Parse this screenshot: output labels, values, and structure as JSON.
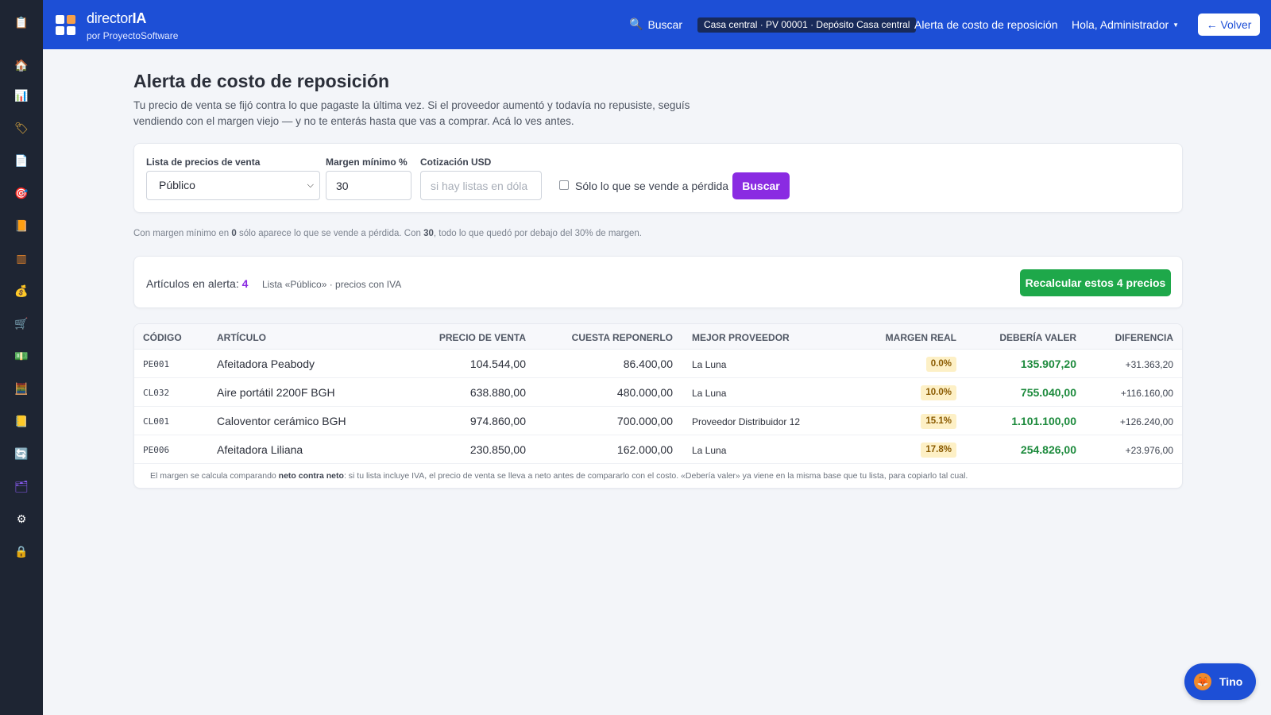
{
  "sidebar": {
    "items": [
      {
        "icon": "clipboard-icon",
        "glyph": "📋",
        "color": "#ffffff"
      },
      {
        "icon": "home-icon",
        "glyph": "🏠",
        "color": "#ffffff"
      },
      {
        "icon": "bar-chart-icon",
        "glyph": "📊",
        "color": "#ffffff"
      },
      {
        "icon": "tag-icon",
        "glyph": "🏷",
        "color": "#f5b942"
      },
      {
        "icon": "document-icon",
        "glyph": "📄",
        "color": "#ffffff"
      },
      {
        "icon": "target-icon",
        "glyph": "🎯",
        "color": "#e94b3c"
      },
      {
        "icon": "book-icon",
        "glyph": "📙",
        "color": "#f3a65a"
      },
      {
        "icon": "barcode-icon",
        "glyph": "▥",
        "color": "#f08a2b"
      },
      {
        "icon": "money-bag-icon",
        "glyph": "💰",
        "color": "#f5b942"
      },
      {
        "icon": "cart-icon",
        "glyph": "🛒",
        "color": "#ffffff"
      },
      {
        "icon": "cash-icon",
        "glyph": "💵",
        "color": "#9bd36b"
      },
      {
        "icon": "calculator-icon",
        "glyph": "🧮",
        "color": "#5ec26a"
      },
      {
        "icon": "note-icon",
        "glyph": "📒",
        "color": "#f5c518"
      },
      {
        "icon": "sync-icon",
        "glyph": "🔄",
        "color": "#3a8df0"
      },
      {
        "icon": "folder-chart-icon",
        "glyph": "🗂",
        "color": "#8b5cf6"
      },
      {
        "icon": "gear-icon",
        "glyph": "⚙",
        "color": "#ffffff"
      },
      {
        "icon": "lock-icon",
        "glyph": "🔒",
        "color": "#f5c518"
      }
    ]
  },
  "header": {
    "brand_prefix": "director",
    "brand_suffix": "IA",
    "brand_sub": "por ProyectoSoftware",
    "search_label": "Buscar",
    "location": "Casa central · PV 00001 · Depósito Casa central",
    "alert_link": "Alerta de costo de reposición",
    "user_greeting": "Hola, Administrador",
    "back_button": "← Volver",
    "colors": {
      "topbar": "#1d4fd6",
      "sidebar": "#1e2533"
    }
  },
  "page": {
    "title": "Alerta de costo de reposición",
    "description": "Tu precio de venta se fijó contra lo que pagaste la última vez. Si el proveedor aumentó y todavía no repusiste, seguís vendiendo con el margen viejo — y no te enterás hasta que vas a comprar. Acá lo ves antes."
  },
  "filters": {
    "price_list_label": "Lista de precios de venta",
    "price_list_value": "Público",
    "min_margin_label": "Margen mínimo %",
    "min_margin_value": "30",
    "usd_label": "Cotización USD",
    "usd_placeholder": "si hay listas en dóla",
    "only_loss_label": "Sólo lo que se vende a pérdida",
    "search_button": "Buscar",
    "accent_color": "#8a2be2"
  },
  "hint": {
    "p1": "Con margen mínimo en ",
    "b1": "0",
    "p2": " sólo aparece lo que se vende a pérdida. Con ",
    "b2": "30",
    "p3": ", todo lo que quedó por debajo del 30% de margen."
  },
  "summary": {
    "label": "Artículos en alerta: ",
    "count": "4",
    "sub": "Lista «Público» · precios con IVA",
    "recalc_button": "Recalcular estos 4 precios",
    "button_color": "#1ea84a"
  },
  "table": {
    "headers": {
      "code": "CÓDIGO",
      "article": "ARTÍCULO",
      "sale_price": "PRECIO DE VENTA",
      "replace_cost": "CUESTA REPONERLO",
      "best_supplier": "MEJOR PROVEEDOR",
      "real_margin": "MARGEN REAL",
      "should_be": "DEBERÍA VALER",
      "difference": "DIFERENCIA"
    },
    "rows": [
      {
        "code": "PE001",
        "article": "Afeitadora Peabody",
        "sale_price": "104.544,00",
        "replace_cost": "86.400,00",
        "supplier": "La Luna",
        "margin": "0.0%",
        "should_be": "135.907,20",
        "difference": "+31.363,20"
      },
      {
        "code": "CL032",
        "article": "Aire portátil 2200F BGH",
        "sale_price": "638.880,00",
        "replace_cost": "480.000,00",
        "supplier": "La Luna",
        "margin": "10.0%",
        "should_be": "755.040,00",
        "difference": "+116.160,00"
      },
      {
        "code": "CL001",
        "article": "Caloventor cerámico BGH",
        "sale_price": "974.860,00",
        "replace_cost": "700.000,00",
        "supplier": "Proveedor Distribuidor 12",
        "margin": "15.1%",
        "should_be": "1.101.100,00",
        "difference": "+126.240,00"
      },
      {
        "code": "PE006",
        "article": "Afeitadora Liliana",
        "sale_price": "230.850,00",
        "replace_cost": "162.000,00",
        "supplier": "La Luna",
        "margin": "17.8%",
        "should_be": "254.826,00",
        "difference": "+23.976,00"
      }
    ],
    "footnote_p1": "El margen se calcula comparando ",
    "footnote_b": "neto contra neto",
    "footnote_p2": ": si tu lista incluye IVA, el precio de venta se lleva a neto antes de compararlo con el costo. «Debería valer» ya viene en la misma base que tu lista, para copiarlo tal cual."
  },
  "assistant": {
    "label": "Tino",
    "icon": "fox-icon"
  }
}
